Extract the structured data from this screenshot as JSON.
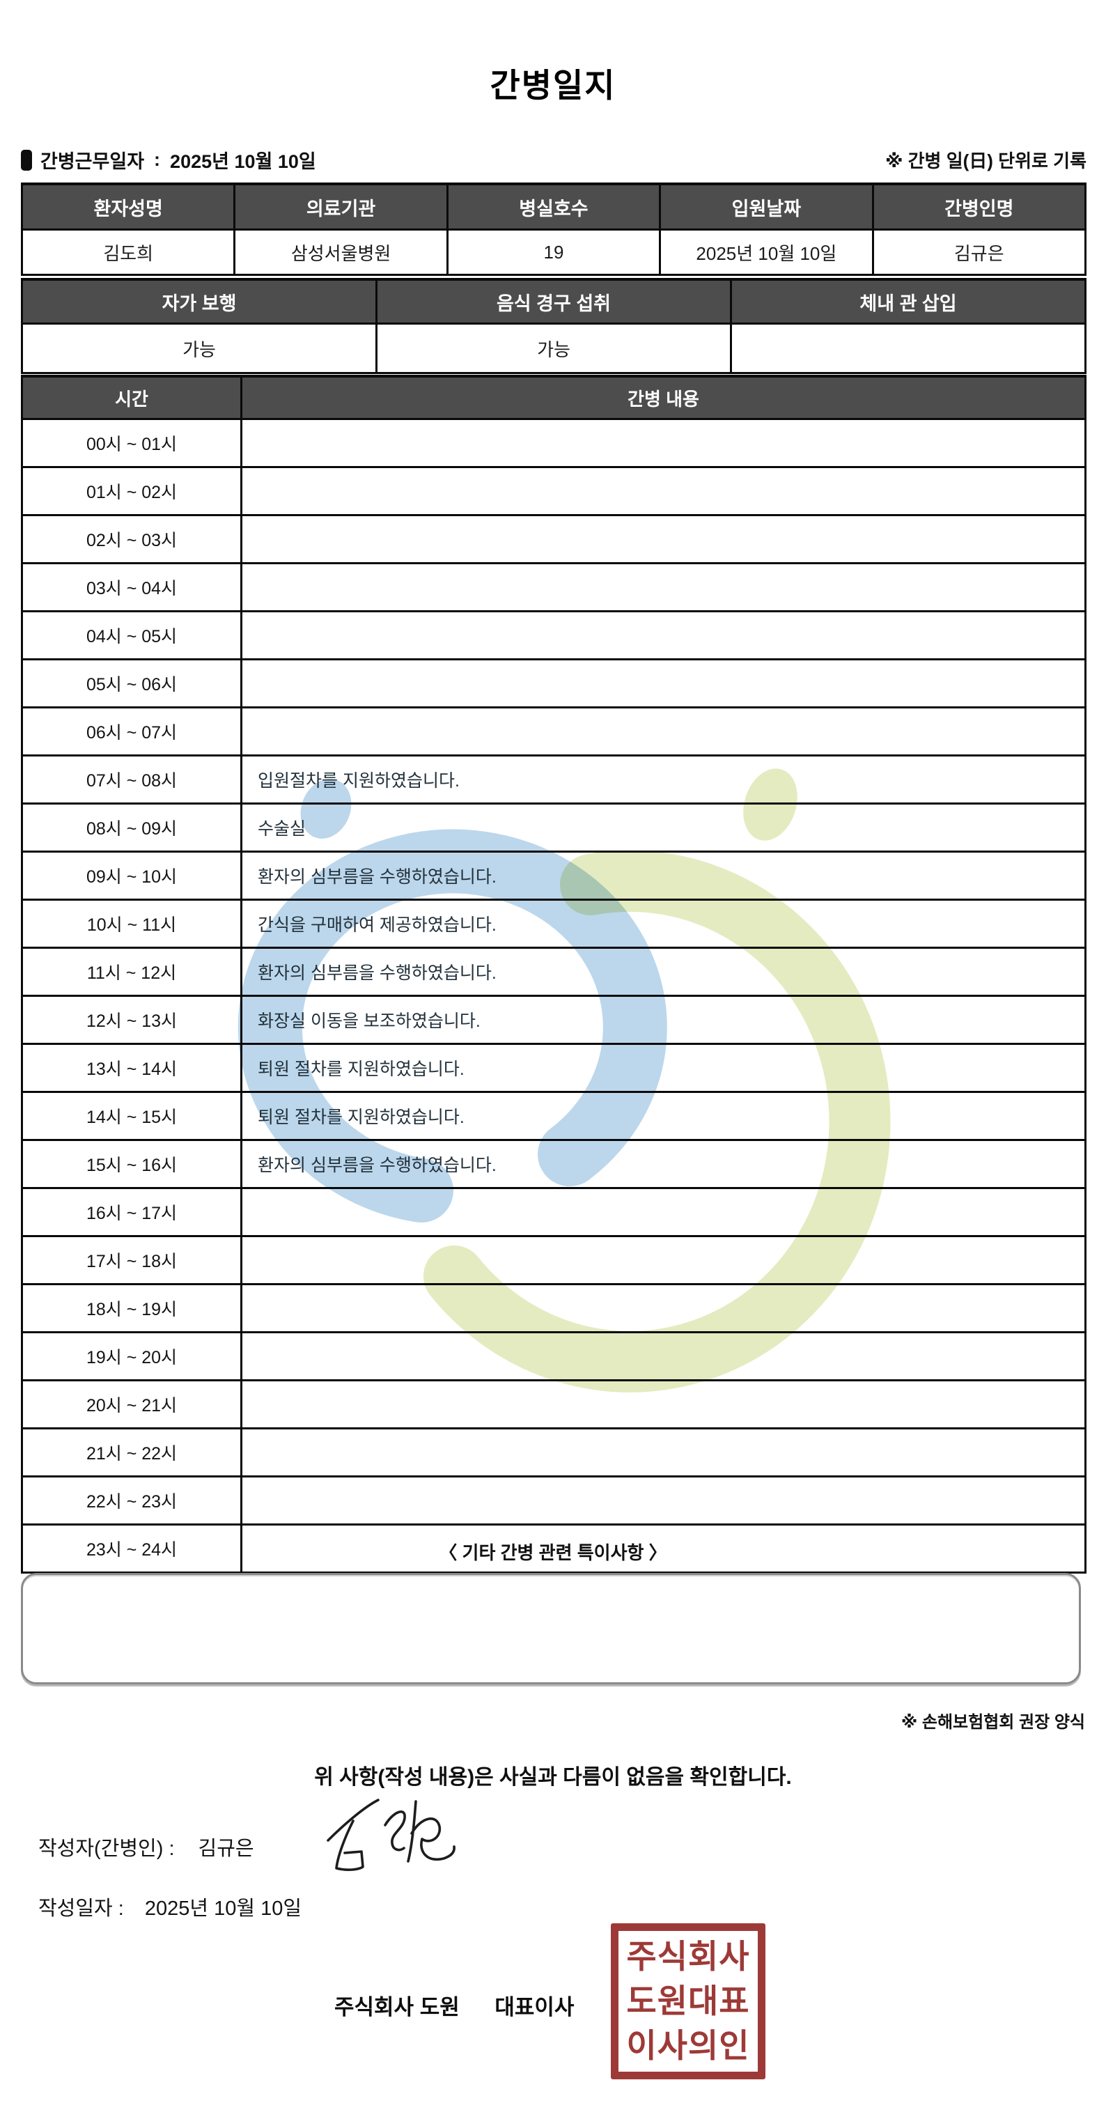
{
  "title": "간병일지",
  "meta": {
    "work_date_label": "간병근무일자",
    "colon": ":",
    "work_date_value": "2025년 10월 10일",
    "unit_note": "※ 간병 일(日) 단위로 기록"
  },
  "info_table": {
    "headers": [
      "환자성명",
      "의료기관",
      "병실호수",
      "입원날짜",
      "간병인명"
    ],
    "values": [
      "김도희",
      "삼성서울병원",
      "19",
      "2025년 10월 10일",
      "김규은"
    ]
  },
  "status_table": {
    "headers": [
      "자가 보행",
      "음식 경구 섭취",
      "체내 관 삽입"
    ],
    "values": [
      "가능",
      "가능",
      ""
    ]
  },
  "log_table": {
    "time_header": "시간",
    "content_header": "간병 내용",
    "rows": [
      {
        "time": "00시 ~ 01시",
        "content": ""
      },
      {
        "time": "01시 ~ 02시",
        "content": ""
      },
      {
        "time": "02시 ~ 03시",
        "content": ""
      },
      {
        "time": "03시 ~ 04시",
        "content": ""
      },
      {
        "time": "04시 ~ 05시",
        "content": ""
      },
      {
        "time": "05시 ~ 06시",
        "content": ""
      },
      {
        "time": "06시 ~ 07시",
        "content": ""
      },
      {
        "time": "07시 ~ 08시",
        "content": "입원절차를 지원하였습니다."
      },
      {
        "time": "08시 ~ 09시",
        "content": "수술실"
      },
      {
        "time": "09시 ~ 10시",
        "content": "환자의 심부름을 수행하였습니다."
      },
      {
        "time": "10시 ~ 11시",
        "content": "간식을 구매하여 제공하였습니다."
      },
      {
        "time": "11시 ~ 12시",
        "content": "환자의 심부름을 수행하였습니다."
      },
      {
        "time": "12시 ~ 13시",
        "content": "화장실 이동을 보조하였습니다."
      },
      {
        "time": "13시 ~ 14시",
        "content": "퇴원 절차를 지원하였습니다."
      },
      {
        "time": "14시 ~ 15시",
        "content": "퇴원 절차를 지원하였습니다."
      },
      {
        "time": "15시 ~ 16시",
        "content": "환자의 심부름을 수행하였습니다."
      },
      {
        "time": "16시 ~ 17시",
        "content": ""
      },
      {
        "time": "17시 ~ 18시",
        "content": ""
      },
      {
        "time": "18시 ~ 19시",
        "content": ""
      },
      {
        "time": "19시 ~ 20시",
        "content": ""
      },
      {
        "time": "20시 ~ 21시",
        "content": ""
      },
      {
        "time": "21시 ~ 22시",
        "content": ""
      },
      {
        "time": "22시 ~ 23시",
        "content": ""
      },
      {
        "time": "23시 ~ 24시",
        "content": ""
      }
    ]
  },
  "notes": {
    "title": "〈 기타 간병 관련 특이사항 〉",
    "content": ""
  },
  "footer": {
    "form_note": "※ 손해보험협회 권장 양식",
    "confirmation": "위 사항(작성 내용)은 사실과 다름이 없음을 확인합니다.",
    "author_label": "작성자(간병인) :",
    "author_name": "김규은",
    "date_label": "작성일자 :",
    "date_value": "2025년 10월 10일",
    "company_name": "주식회사 도원",
    "company_title": "대표이사",
    "stamp_lines": [
      "주식회사",
      "도원대표",
      "이사의인"
    ]
  },
  "colors": {
    "header_bg": "#4d4d4d",
    "stamp_red": "#9d3a37",
    "watermark_blue": "#b9d5eb",
    "watermark_green": "#e3eabd"
  }
}
